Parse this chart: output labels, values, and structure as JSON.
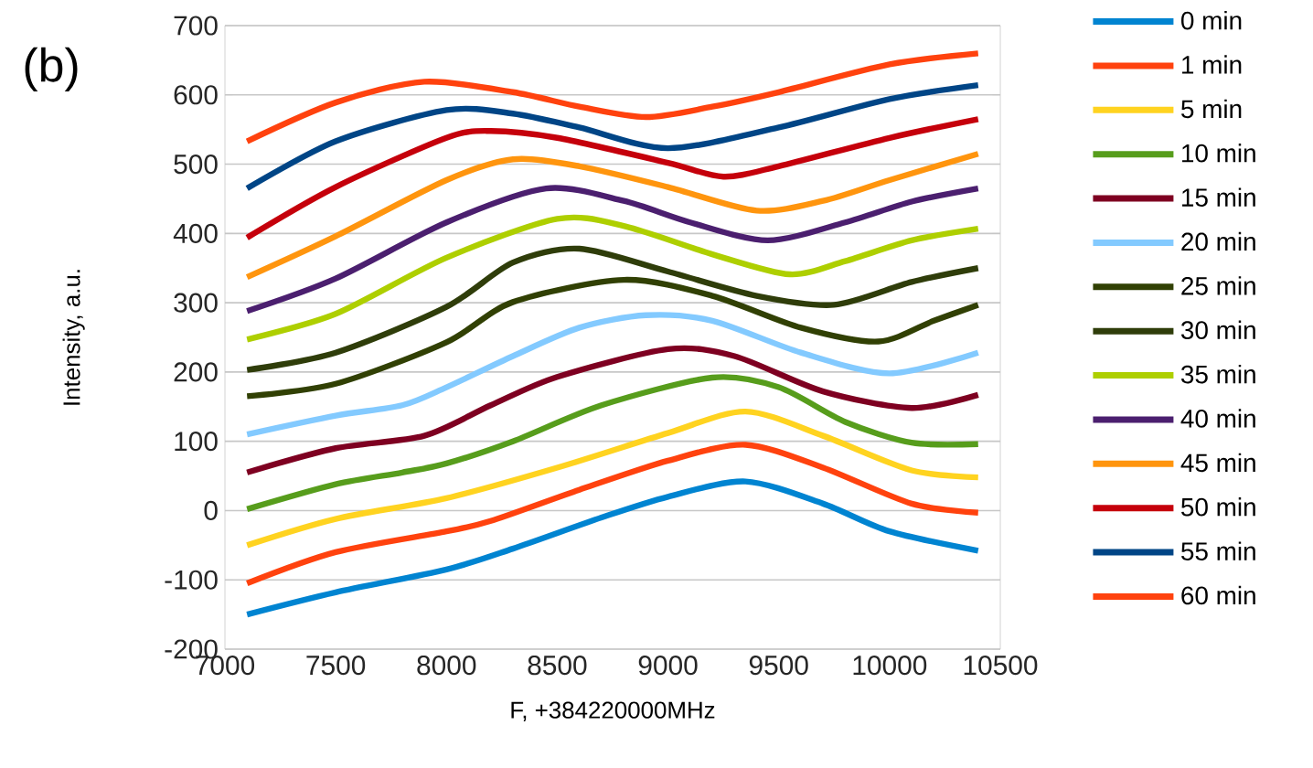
{
  "chart_data": {
    "type": "line",
    "xlabel": "F, +384220000MHz",
    "ylabel": "Intensity, a.u.",
    "annotations": [
      "(b)"
    ],
    "xlim": [
      7000,
      10500
    ],
    "ylim": [
      -200,
      700
    ],
    "xticks": [
      7000,
      7500,
      8000,
      8500,
      9000,
      9500,
      10000,
      10500
    ],
    "yticks": [
      -200,
      -100,
      0,
      100,
      200,
      300,
      400,
      500,
      600,
      700
    ],
    "grid": "y",
    "legend": "right",
    "series": [
      {
        "name": "0 min",
        "color": "#0084d1",
        "x": [
          7100,
          7500,
          8000,
          8300,
          8700,
          9000,
          9350,
          9700,
          10000,
          10400
        ],
        "values": [
          -150,
          -118,
          -85,
          -55,
          -10,
          20,
          42,
          10,
          -30,
          -58
        ]
      },
      {
        "name": "1 min",
        "color": "#ff420e",
        "x": [
          7100,
          7500,
          8000,
          8200,
          8600,
          9000,
          9350,
          9700,
          10100,
          10400
        ],
        "values": [
          -105,
          -60,
          -30,
          -15,
          30,
          72,
          95,
          62,
          10,
          -3
        ]
      },
      {
        "name": "5 min",
        "color": "#ffd320",
        "x": [
          7100,
          7500,
          8000,
          8500,
          9000,
          9350,
          9700,
          10100,
          10400
        ],
        "values": [
          -50,
          -12,
          18,
          62,
          112,
          143,
          108,
          58,
          48
        ]
      },
      {
        "name": "10 min",
        "color": "#579d1c",
        "x": [
          7100,
          7500,
          7800,
          8000,
          8300,
          8700,
          9200,
          9500,
          9800,
          10100,
          10400
        ],
        "values": [
          2,
          38,
          55,
          68,
          100,
          152,
          192,
          178,
          128,
          98,
          96
        ]
      },
      {
        "name": "15 min",
        "color": "#7e0021",
        "x": [
          7100,
          7500,
          7900,
          8200,
          8500,
          9000,
          9300,
          9700,
          10100,
          10400
        ],
        "values": [
          55,
          90,
          108,
          152,
          193,
          233,
          223,
          172,
          148,
          167
        ]
      },
      {
        "name": "20 min",
        "color": "#83caff",
        "x": [
          7100,
          7500,
          7800,
          8000,
          8300,
          8600,
          8900,
          9200,
          9600,
          10000,
          10400
        ],
        "values": [
          110,
          137,
          152,
          178,
          223,
          264,
          282,
          274,
          228,
          198,
          228
        ]
      },
      {
        "name": "25 min",
        "color": "#314004",
        "x": [
          7100,
          7500,
          8000,
          8300,
          8800,
          9200,
          9600,
          9950,
          10200,
          10400
        ],
        "values": [
          165,
          183,
          243,
          301,
          333,
          310,
          264,
          244,
          274,
          297
        ]
      },
      {
        "name": "30 min",
        "color": "#2f3d0a",
        "x": [
          7100,
          7500,
          8000,
          8300,
          8600,
          9000,
          9400,
          9750,
          10100,
          10400
        ],
        "values": [
          203,
          228,
          294,
          358,
          378,
          345,
          310,
          297,
          330,
          350
        ]
      },
      {
        "name": "35 min",
        "color": "#aecf00",
        "x": [
          7100,
          7500,
          8000,
          8500,
          8800,
          9200,
          9550,
          9800,
          10100,
          10400
        ],
        "values": [
          247,
          284,
          365,
          421,
          411,
          370,
          341,
          360,
          390,
          407
        ]
      },
      {
        "name": "40 min",
        "color": "#4b1f6f",
        "x": [
          7100,
          7500,
          8000,
          8450,
          8800,
          9100,
          9450,
          9800,
          10100,
          10400
        ],
        "values": [
          288,
          335,
          416,
          465,
          447,
          416,
          390,
          416,
          446,
          465
        ]
      },
      {
        "name": "45 min",
        "color": "#ff950e",
        "x": [
          7100,
          7500,
          8000,
          8300,
          8600,
          9000,
          9400,
          9700,
          10000,
          10400
        ],
        "values": [
          337,
          396,
          477,
          507,
          497,
          467,
          433,
          447,
          477,
          515
        ]
      },
      {
        "name": "50 min",
        "color": "#c5000b",
        "x": [
          7100,
          7500,
          8000,
          8200,
          8500,
          9000,
          9250,
          9500,
          10000,
          10400
        ],
        "values": [
          394,
          467,
          538,
          548,
          538,
          502,
          482,
          497,
          538,
          565
        ]
      },
      {
        "name": "55 min",
        "color": "#004586",
        "x": [
          7100,
          7500,
          8000,
          8300,
          8600,
          9000,
          9500,
          10000,
          10400
        ],
        "values": [
          465,
          533,
          578,
          573,
          553,
          523,
          553,
          594,
          614
        ]
      },
      {
        "name": "60 min",
        "color": "#ff420e",
        "x": [
          7100,
          7500,
          7900,
          8300,
          8600,
          8900,
          9200,
          9500,
          10000,
          10400
        ],
        "values": [
          533,
          589,
          619,
          604,
          583,
          568,
          583,
          604,
          644,
          660
        ]
      }
    ]
  }
}
